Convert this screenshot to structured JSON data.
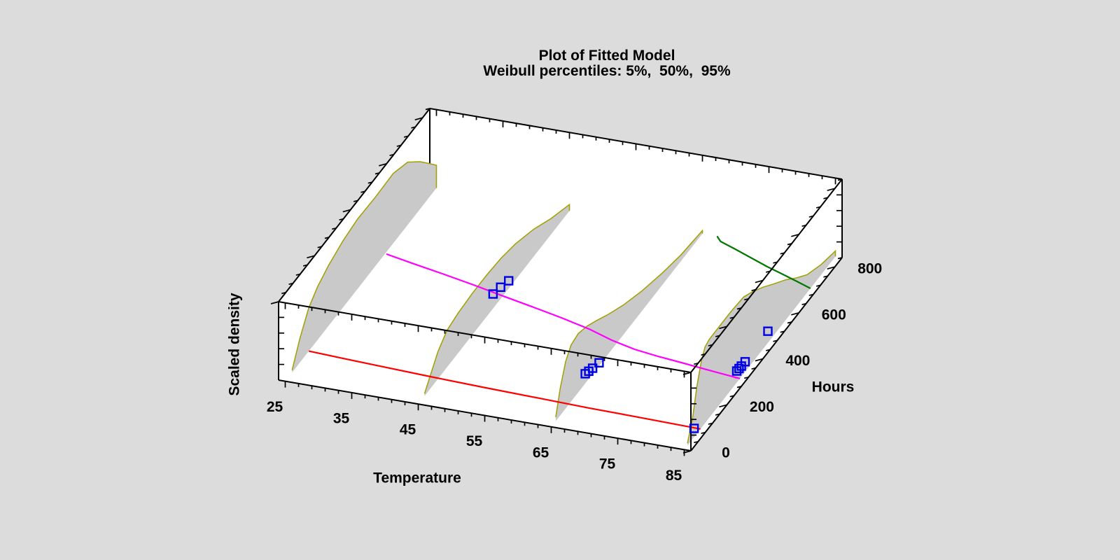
{
  "page": {
    "background_color": "#DCDCDC",
    "plot_background": "#FFFFFF",
    "frame_color": "#000000"
  },
  "chart_data": {
    "type": "3d-fitted-model-density",
    "title": "Plot of Fitted Model",
    "subtitle": "Weibull percentiles: 5%,  50%,  95%",
    "weibull_percentiles": [
      "5%",
      "50%",
      "95%"
    ],
    "axes": {
      "temperature": {
        "label": "Temperature",
        "range": [
          24,
          86
        ],
        "major_ticks": [
          25,
          35,
          45,
          55,
          65,
          75,
          85
        ],
        "minor_tick_step": 2
      },
      "hours": {
        "label": "Hours",
        "range": [
          0,
          840
        ],
        "major_ticks": [
          0,
          200,
          400,
          600,
          800
        ],
        "minor_tick_step": 40
      },
      "density": {
        "label": "Scaled density",
        "range": [
          0,
          1
        ],
        "tick_step": 0.2
      }
    },
    "percentile_curves": [
      {
        "name": "5%",
        "color": "#FF0000",
        "points": [
          [
            25,
            131
          ],
          [
            30,
            126
          ],
          [
            36,
            120
          ],
          [
            44,
            113
          ],
          [
            52,
            107
          ],
          [
            60,
            102
          ],
          [
            68,
            97
          ],
          [
            76,
            94
          ],
          [
            85,
            90
          ]
        ]
      },
      {
        "name": "50%",
        "color": "#FF00FF",
        "points": [
          [
            25.2,
            554
          ],
          [
            30,
            534
          ],
          [
            35,
            514
          ],
          [
            40,
            493
          ],
          [
            45,
            470
          ],
          [
            50,
            448
          ],
          [
            55,
            425
          ],
          [
            60,
            399
          ],
          [
            64,
            372
          ],
          [
            68,
            352
          ],
          [
            72,
            340
          ],
          [
            76,
            331
          ],
          [
            80,
            321
          ],
          [
            85,
            309
          ]
        ],
        "extra_dash": [
          [
            83.6,
            313
          ],
          [
            84.5,
            309
          ]
        ]
      },
      {
        "name": "95%",
        "color": "#007800",
        "points": [
          [
            67.2,
            840
          ],
          [
            68.2,
            822
          ],
          [
            71,
            802
          ],
          [
            74,
            779
          ],
          [
            77,
            756
          ],
          [
            80,
            736
          ],
          [
            82.5,
            719
          ],
          [
            85,
            701
          ]
        ]
      }
    ],
    "density_fins": [
      {
        "temperature": 25,
        "fill": "#C9C9C9",
        "edge_color": "#A0A000",
        "profile": [
          [
            38,
            0.03
          ],
          [
            80,
            0.3
          ],
          [
            130,
            0.55
          ],
          [
            180,
            0.68
          ],
          [
            240,
            0.77
          ],
          [
            320,
            0.85
          ],
          [
            400,
            0.89
          ],
          [
            500,
            0.88
          ],
          [
            600,
            0.89
          ],
          [
            680,
            0.8
          ],
          [
            750,
            0.6
          ],
          [
            800,
            0.43
          ],
          [
            840,
            0.29
          ]
        ]
      },
      {
        "temperature": 45,
        "fill": "#C9C9C9",
        "edge_color": "#A0A000",
        "profile": [
          [
            35,
            0.03
          ],
          [
            70,
            0.18
          ],
          [
            110,
            0.35
          ],
          [
            160,
            0.47
          ],
          [
            220,
            0.51
          ],
          [
            300,
            0.53
          ],
          [
            380,
            0.53
          ],
          [
            460,
            0.51
          ],
          [
            540,
            0.46
          ],
          [
            640,
            0.35
          ],
          [
            740,
            0.2
          ],
          [
            840,
            0.08
          ]
        ]
      },
      {
        "temperature": 65,
        "fill": "#C9C9C9",
        "edge_color": "#A0A000",
        "profile": [
          [
            25,
            0.05
          ],
          [
            50,
            0.35
          ],
          [
            80,
            0.6
          ],
          [
            110,
            0.72
          ],
          [
            150,
            0.75
          ],
          [
            200,
            0.7
          ],
          [
            250,
            0.62
          ],
          [
            320,
            0.5
          ],
          [
            400,
            0.38
          ],
          [
            500,
            0.26
          ],
          [
            620,
            0.15
          ],
          [
            720,
            0.08
          ],
          [
            840,
            0.04
          ]
        ]
      },
      {
        "temperature": 85,
        "fill": "#C9C9C9",
        "edge_color": "#A0A000",
        "profile": [
          [
            18,
            0.03
          ],
          [
            45,
            0.25
          ],
          [
            70,
            0.6
          ],
          [
            95,
            0.85
          ],
          [
            115,
            0.97
          ],
          [
            140,
            1.0
          ],
          [
            200,
            1.0
          ],
          [
            260,
            1.0
          ],
          [
            330,
            0.98
          ],
          [
            380,
            0.9
          ],
          [
            437,
            0.79
          ],
          [
            500,
            0.65
          ],
          [
            565,
            0.51
          ],
          [
            620,
            0.37
          ],
          [
            682,
            0.23
          ],
          [
            760,
            0.13
          ],
          [
            840,
            0.07
          ]
        ]
      }
    ],
    "data_points": {
      "color": "#0000E6",
      "marker": "open-square",
      "groups": [
        {
          "temperature_level": 45,
          "points": [
            [
              43.5,
              471
            ],
            [
              43.8,
              502
            ],
            [
              44.2,
              532
            ]
          ]
        },
        {
          "temperature_level": 65,
          "points": [
            [
              64.0,
              226
            ],
            [
              64.2,
              238
            ],
            [
              64.4,
              252
            ],
            [
              64.7,
              277
            ]
          ]
        },
        {
          "temperature_level": 85,
          "points": [
            [
              84.1,
              88
            ],
            [
              83.8,
              336
            ],
            [
              83.85,
              347
            ],
            [
              83.9,
              358
            ],
            [
              83.95,
              377
            ],
            [
              83.8,
              509
            ]
          ]
        }
      ]
    }
  }
}
